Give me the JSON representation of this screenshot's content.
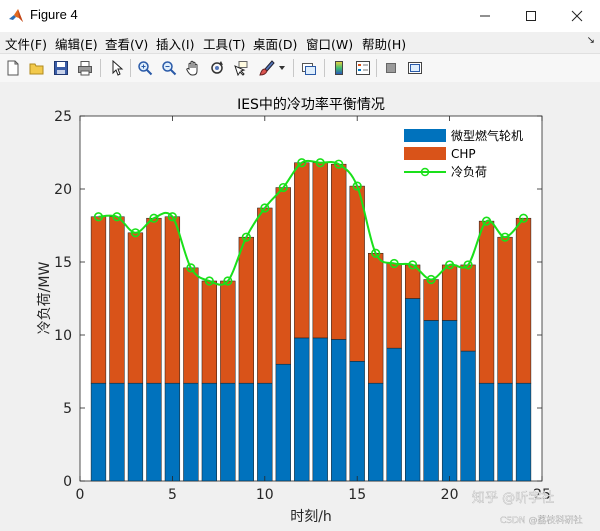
{
  "window": {
    "title": "Figure 4"
  },
  "menu": [
    "文件(F)",
    "编辑(E)",
    "查看(V)",
    "插入(I)",
    "工具(T)",
    "桌面(D)",
    "窗口(W)",
    "帮助(H)"
  ],
  "menu_arrow": "↘",
  "toolbar": {
    "icons": [
      "new-figure-icon",
      "open-file-icon",
      "save-icon",
      "print-icon",
      "pointer-icon",
      "zoom-in-icon",
      "zoom-out-icon",
      "pan-icon",
      "rotate-3d-icon",
      "data-cursor-icon",
      "brush-icon",
      "brush-dropdown-icon",
      "link-plot-icon",
      "colorbar-icon",
      "legend-icon",
      "hide-plot-tools-icon",
      "show-plot-tools-icon"
    ]
  },
  "chart_data": {
    "type": "bar",
    "stacked": true,
    "title": "IES中的冷功率平衡情况",
    "xlabel": "时刻/h",
    "ylabel": "冷负荷/MW",
    "x": [
      1,
      2,
      3,
      4,
      5,
      6,
      7,
      8,
      9,
      10,
      11,
      12,
      13,
      14,
      15,
      16,
      17,
      18,
      19,
      20,
      21,
      22,
      23,
      24
    ],
    "xlim": [
      0,
      25
    ],
    "ylim": [
      0,
      25
    ],
    "xticks": [
      0,
      5,
      10,
      15,
      20,
      25
    ],
    "yticks": [
      0,
      5,
      10,
      15,
      20,
      25
    ],
    "grid": false,
    "legend_position": "top-right",
    "series": [
      {
        "name": "微型燃气轮机",
        "kind": "bar",
        "color": "#0072BD",
        "values": [
          6.7,
          6.7,
          6.7,
          6.7,
          6.7,
          6.7,
          6.7,
          6.7,
          6.7,
          6.7,
          8.0,
          9.8,
          9.8,
          9.7,
          8.2,
          6.7,
          9.1,
          12.5,
          11.0,
          11.0,
          8.9,
          6.7,
          6.7,
          6.7
        ]
      },
      {
        "name": "CHP",
        "kind": "bar",
        "color": "#D95319",
        "values": [
          11.4,
          11.4,
          10.3,
          11.3,
          11.4,
          7.9,
          7.0,
          7.0,
          10.0,
          12.0,
          12.1,
          12.0,
          12.0,
          12.0,
          12.0,
          8.9,
          5.8,
          2.3,
          2.8,
          3.8,
          5.9,
          11.1,
          10.0,
          11.3
        ]
      },
      {
        "name": "冷负荷",
        "kind": "line",
        "color": "#1AE01A",
        "values": [
          18.1,
          18.1,
          17.0,
          18.0,
          18.1,
          14.6,
          13.7,
          13.7,
          16.7,
          18.7,
          20.1,
          21.8,
          21.8,
          21.7,
          20.2,
          15.6,
          14.9,
          14.8,
          13.8,
          14.8,
          14.8,
          17.8,
          16.7,
          18.0
        ]
      }
    ]
  },
  "watermark": {
    "line1": "知乎 @听字社",
    "line2": "CSDN @荔枝科研社"
  },
  "colors": {
    "axes_bg": "#ffffff",
    "figure_bg": "#f0f0f0",
    "axis": "#262626"
  }
}
